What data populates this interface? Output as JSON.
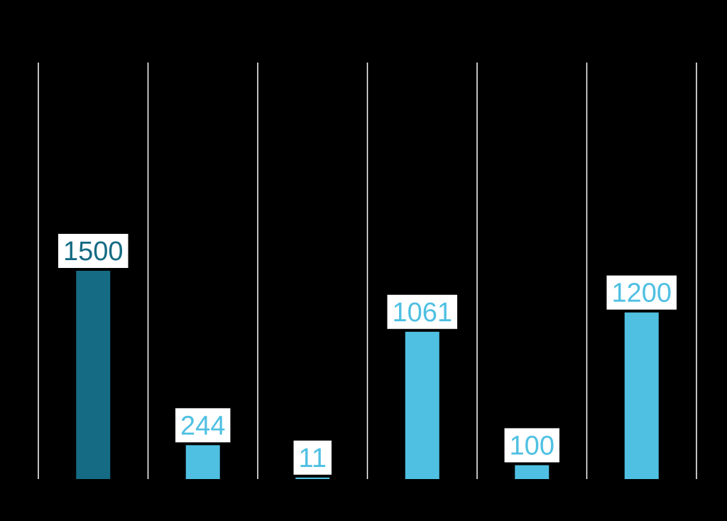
{
  "chart_data": {
    "type": "bar",
    "title": "",
    "xlabel": "",
    "ylabel": "",
    "values": [
      1500,
      244,
      11,
      1061,
      100,
      1200
    ],
    "bar_colors": [
      "#156b83",
      "#4fc0e2",
      "#4fc0e2",
      "#4fc0e2",
      "#4fc0e2",
      "#4fc0e2"
    ],
    "label_colors": [
      "#156b83",
      "#4fc0e2",
      "#4fc0e2",
      "#4fc0e2",
      "#4fc0e2",
      "#4fc0e2"
    ],
    "label_box_color": "#ffffff",
    "background_color": "#000000",
    "divider_color": "#ffffff",
    "ylim": [
      0,
      3000
    ],
    "grid": false,
    "legend": "none"
  }
}
